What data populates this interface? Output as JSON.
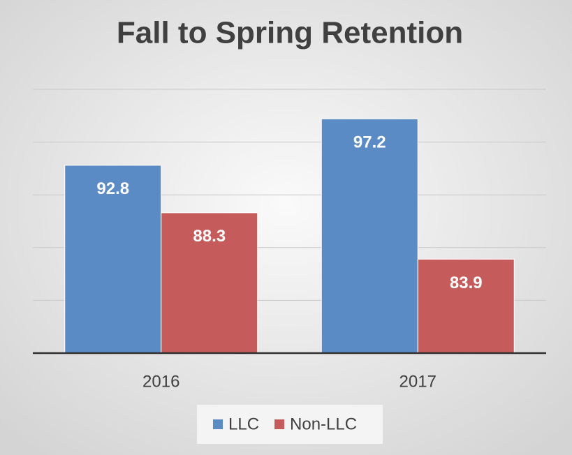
{
  "chart_data": {
    "type": "bar",
    "title": "Fall to Spring Retention",
    "categories": [
      "2016",
      "2017"
    ],
    "series": [
      {
        "name": "LLC",
        "color": "#5b8bc5",
        "values": [
          92.8,
          97.2
        ]
      },
      {
        "name": "Non-LLC",
        "color": "#c65b5b",
        "values": [
          88.3,
          83.9
        ]
      }
    ],
    "ylim": [
      75,
      100
    ],
    "yticks": [
      75,
      80,
      85,
      90,
      95,
      100
    ],
    "grid": true,
    "legend": "bottom"
  }
}
